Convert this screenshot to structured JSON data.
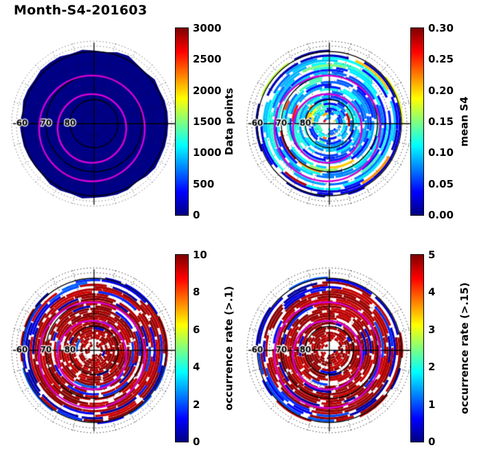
{
  "title": "Month-S4-201603",
  "colors": {
    "magenta_oval": "#d400d4",
    "grid": "#000000",
    "background": "#ffffff",
    "low_value": "#000087",
    "high_value": "#8b0000"
  },
  "polar_grid": {
    "lat_ring_labels": [
      "60",
      "70",
      "80"
    ],
    "solid_rings_lat": [
      80,
      70,
      60
    ],
    "dotted_rings_lat": [
      85,
      75,
      65
    ],
    "spoke_step_deg": 15,
    "magenta_contour_rings": 2
  },
  "chart_data": [
    {
      "type": "heatmap",
      "projection": "polar",
      "panel": "data-points",
      "style": "filled",
      "kind": "uniform-low",
      "fill_color": "#000087",
      "colorbar": {
        "label": "Data points",
        "min": 0,
        "max": 3000,
        "ticks": [
          "0",
          "500",
          "1000",
          "1500",
          "2000",
          "2500",
          "3000"
        ]
      },
      "summary": "entire polar cap (latitude 60-90) uniformly dark blue: low number of data points per bin; black latitude circles, crosshair and two magenta contour ovals overlaid"
    },
    {
      "type": "heatmap",
      "projection": "polar",
      "panel": "mean-s4",
      "style": "binned",
      "kind": "mean",
      "colorbar": {
        "label": "mean S4",
        "min": 0,
        "max": 0.3,
        "ticks": [
          "0.00",
          "0.05",
          "0.10",
          "0.15",
          "0.20",
          "0.25",
          "0.30"
        ]
      },
      "summary": "concentric binned arcs mostly 0.03-0.12 (blue/cyan) with scattered green, yellow and red patches; outermost rings darkest blue; white gaps near the pole"
    },
    {
      "type": "heatmap",
      "projection": "polar",
      "panel": "occurrence-rate-gt-0.1",
      "style": "binned",
      "kind": "rate",
      "colorbar": {
        "label": "occurrence rate (>.1)",
        "min": 0,
        "max": 10,
        "ticks": [
          "0",
          "2",
          "4",
          "6",
          "8",
          "10"
        ]
      },
      "summary": "most bins saturated near maximum (dark red); scattered dark-blue low-rate segments concentrated near the outer (low latitude) edge; white voids near the pole"
    },
    {
      "type": "heatmap",
      "projection": "polar",
      "panel": "occurrence-rate-gt-0.15",
      "style": "binned",
      "kind": "rate",
      "colorbar": {
        "label": "occurrence rate (>.15)",
        "min": 0,
        "max": 5,
        "ticks": [
          "0",
          "1",
          "2",
          "3",
          "4",
          "5"
        ]
      },
      "summary": "most bins saturated near maximum (dark red); scattered dark-blue low-rate segments concentrated near the outer (low latitude) edge; white voids near the pole"
    }
  ]
}
